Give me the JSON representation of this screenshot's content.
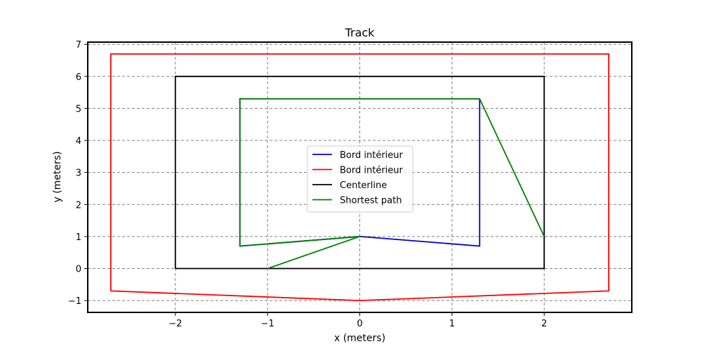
{
  "chart_data": {
    "type": "line",
    "title": "Track",
    "xlabel": "x (meters)",
    "ylabel": "y (meters)",
    "xlim": [
      -2.95,
      2.95
    ],
    "ylim": [
      -1.37,
      7.07
    ],
    "xticks": [
      -2,
      -1,
      0,
      1,
      2
    ],
    "yticks": [
      -1,
      0,
      1,
      2,
      3,
      4,
      5,
      6,
      7
    ],
    "xtick_labels": [
      "−2",
      "−1",
      "0",
      "1",
      "2"
    ],
    "ytick_labels": [
      "−1",
      "0",
      "1",
      "2",
      "3",
      "4",
      "5",
      "6",
      "7"
    ],
    "grid": true,
    "legend_position": "center",
    "series": [
      {
        "name": "Bord intérieur",
        "color": "#0000cc",
        "points": [
          [
            0,
            1
          ],
          [
            1.3,
            0.7
          ],
          [
            1.3,
            5.3
          ],
          [
            -1.3,
            5.3
          ],
          [
            -1.3,
            0.7
          ],
          [
            0,
            1
          ]
        ]
      },
      {
        "name": "Bord intérieur",
        "color": "#ff0000",
        "points": [
          [
            0,
            -1
          ],
          [
            2.7,
            -0.7
          ],
          [
            2.7,
            6.7
          ],
          [
            -2.7,
            6.7
          ],
          [
            -2.7,
            -0.7
          ],
          [
            0,
            -1
          ]
        ]
      },
      {
        "name": "Centerline",
        "color": "#000000",
        "points": [
          [
            -2,
            0
          ],
          [
            2,
            0
          ],
          [
            2,
            6
          ],
          [
            -2,
            6
          ],
          [
            -2,
            0
          ]
        ]
      },
      {
        "name": "Shortest path",
        "color": "#008000",
        "points": [
          [
            -1,
            0
          ],
          [
            0,
            1
          ],
          [
            -1.3,
            0.7
          ],
          [
            -1.3,
            5.3
          ],
          [
            1.3,
            5.3
          ],
          [
            2,
            1
          ]
        ]
      }
    ]
  }
}
